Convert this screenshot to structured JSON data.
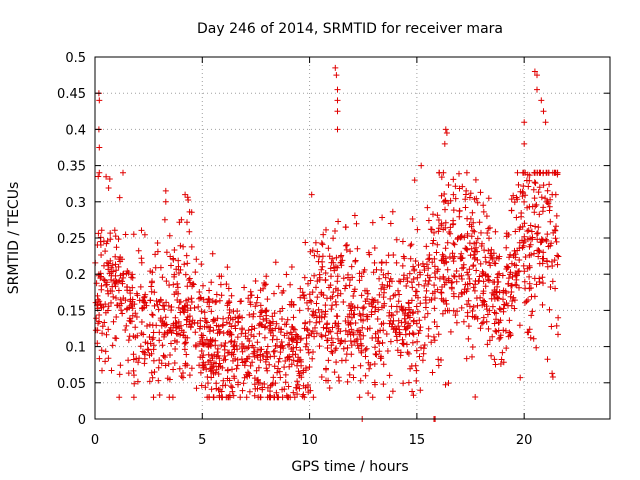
{
  "chart_data": {
    "type": "scatter",
    "title": "Day 246 of 2014, SRMTID for receiver mara",
    "xlabel": "GPS time / hours",
    "ylabel": "SRMTID / TECUs",
    "xlim": [
      0,
      24
    ],
    "ylim": [
      0,
      0.5
    ],
    "xticks": [
      0,
      5,
      10,
      15,
      20
    ],
    "xtick_labels": [
      "0",
      "5",
      "10",
      "15",
      "20"
    ],
    "yticks": [
      0,
      0.05,
      0.1,
      0.15,
      0.2,
      0.25,
      0.3,
      0.35,
      0.4,
      0.45,
      0.5
    ],
    "ytick_labels": [
      "0",
      "0.05",
      "0.1",
      "0.15",
      "0.2",
      "0.25",
      "0.3",
      "0.35",
      "0.4",
      "0.45",
      "0.5"
    ],
    "grid": true,
    "marker": "+",
    "color": "#e00000",
    "series": [
      {
        "name": "SRMTID",
        "trend_profile": {
          "x": [
            0,
            0.5,
            1,
            1.5,
            2,
            2.5,
            3,
            3.5,
            4,
            4.5,
            5,
            5.5,
            6,
            6.5,
            7,
            7.5,
            8,
            8.5,
            9,
            9.5,
            10,
            10.5,
            11,
            11.5,
            12,
            12.5,
            13,
            13.5,
            14,
            14.5,
            15,
            15.5,
            16,
            16.5,
            17,
            17.5,
            18,
            18.5,
            19,
            19.5,
            20,
            20.5,
            21,
            21.5
          ],
          "y": [
            0.16,
            0.19,
            0.18,
            0.15,
            0.14,
            0.13,
            0.15,
            0.14,
            0.15,
            0.17,
            0.11,
            0.1,
            0.09,
            0.1,
            0.11,
            0.11,
            0.1,
            0.09,
            0.1,
            0.09,
            0.12,
            0.16,
            0.17,
            0.15,
            0.14,
            0.13,
            0.14,
            0.15,
            0.15,
            0.13,
            0.16,
            0.18,
            0.21,
            0.23,
            0.24,
            0.23,
            0.2,
            0.17,
            0.15,
            0.21,
            0.24,
            0.26,
            0.27,
            0.26
          ]
        },
        "noise": 0.05,
        "points_per_hour": 95,
        "spikes": [
          {
            "x": 0.18,
            "y": 0.45
          },
          {
            "x": 0.2,
            "y": 0.44
          },
          {
            "x": 0.18,
            "y": 0.4
          },
          {
            "x": 0.2,
            "y": 0.375
          },
          {
            "x": 0.2,
            "y": 0.34
          },
          {
            "x": 0.15,
            "y": 0.335
          },
          {
            "x": 3.3,
            "y": 0.315
          },
          {
            "x": 3.3,
            "y": 0.3
          },
          {
            "x": 4.2,
            "y": 0.31
          },
          {
            "x": 10.1,
            "y": 0.31
          },
          {
            "x": 11.2,
            "y": 0.485
          },
          {
            "x": 11.25,
            "y": 0.475
          },
          {
            "x": 11.3,
            "y": 0.455
          },
          {
            "x": 11.3,
            "y": 0.44
          },
          {
            "x": 11.3,
            "y": 0.425
          },
          {
            "x": 11.3,
            "y": 0.4
          },
          {
            "x": 16.35,
            "y": 0.4
          },
          {
            "x": 16.4,
            "y": 0.395
          },
          {
            "x": 16.3,
            "y": 0.38
          },
          {
            "x": 20.0,
            "y": 0.38
          },
          {
            "x": 20.0,
            "y": 0.41
          },
          {
            "x": 20.5,
            "y": 0.48
          },
          {
            "x": 20.6,
            "y": 0.475
          },
          {
            "x": 20.6,
            "y": 0.455
          },
          {
            "x": 20.8,
            "y": 0.44
          },
          {
            "x": 20.9,
            "y": 0.425
          },
          {
            "x": 21.0,
            "y": 0.41
          },
          {
            "x": 15.2,
            "y": 0.35
          },
          {
            "x": 14.9,
            "y": 0.33
          }
        ],
        "zero_points": [
          {
            "x": 12.45,
            "y": 0
          },
          {
            "x": 15.8,
            "y": 0
          },
          {
            "x": 15.85,
            "y": 0
          }
        ],
        "x_end": 21.6
      }
    ]
  }
}
